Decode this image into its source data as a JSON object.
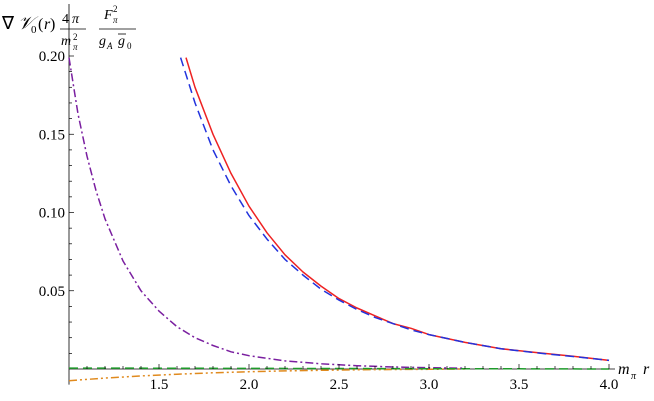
{
  "chart_data": {
    "type": "line",
    "title": "",
    "xlabel": "mπ r",
    "ylabel": "∇𝒱0(r) 4π/mπ² Fπ²/(gA g0)",
    "xlim": [
      1.0,
      4.0
    ],
    "ylim": [
      -0.01,
      0.2
    ],
    "grid": false,
    "legend": "none",
    "x_ticks": [
      "1.5",
      "2.0",
      "2.5",
      "3.0",
      "3.5",
      "4.0"
    ],
    "y_ticks": [
      "0.05",
      "0.10",
      "0.15",
      "0.20"
    ],
    "series": [
      {
        "style": "solid",
        "color": "#ee2222",
        "x": [
          1.65,
          1.7,
          1.8,
          1.9,
          2.0,
          2.1,
          2.2,
          2.3,
          2.4,
          2.5,
          2.6,
          2.7,
          2.8,
          2.9,
          3.0,
          3.2,
          3.4,
          3.6,
          3.8,
          4.0
        ],
        "y": [
          0.199,
          0.18,
          0.15,
          0.125,
          0.104,
          0.087,
          0.073,
          0.062,
          0.053,
          0.045,
          0.039,
          0.034,
          0.029,
          0.026,
          0.022,
          0.017,
          0.013,
          0.0105,
          0.0082,
          0.0055
        ]
      },
      {
        "style": "dashed",
        "color": "#2233dd",
        "x": [
          1.62,
          1.7,
          1.8,
          1.9,
          2.0,
          2.1,
          2.2,
          2.3,
          2.4,
          2.5,
          2.6,
          2.7,
          2.8,
          2.9,
          3.0,
          3.2,
          3.4,
          3.6,
          3.8,
          4.0
        ],
        "y": [
          0.199,
          0.17,
          0.14,
          0.117,
          0.098,
          0.083,
          0.07,
          0.06,
          0.051,
          0.044,
          0.038,
          0.033,
          0.029,
          0.025,
          0.022,
          0.017,
          0.013,
          0.0103,
          0.008,
          0.0055
        ]
      },
      {
        "style": "dashdot",
        "color": "#7a1fa0",
        "x": [
          1.0,
          1.05,
          1.1,
          1.15,
          1.2,
          1.3,
          1.4,
          1.5,
          1.6,
          1.7,
          1.8,
          1.9,
          2.0,
          2.2,
          2.4,
          2.6,
          2.8,
          3.0,
          3.2
        ],
        "y": [
          0.199,
          0.163,
          0.136,
          0.114,
          0.096,
          0.069,
          0.05,
          0.037,
          0.027,
          0.02,
          0.015,
          0.011,
          0.0085,
          0.0052,
          0.0033,
          0.0021,
          0.0013,
          0.0008,
          0.0005
        ]
      },
      {
        "style": "dashdotdot",
        "color": "#e08a1e",
        "x": [
          1.0,
          1.2,
          1.4,
          1.6,
          1.8,
          2.0,
          2.2,
          2.4,
          2.6,
          2.8,
          3.0,
          3.2
        ],
        "y": [
          -0.0075,
          -0.0058,
          -0.0044,
          -0.0033,
          -0.0024,
          -0.0017,
          -0.0012,
          -0.0008,
          -0.0005,
          -0.0003,
          -0.0002,
          0.0
        ]
      },
      {
        "style": "dashed",
        "color": "#1e9a2a",
        "x": [
          1.0,
          1.5,
          2.0,
          2.5,
          3.0,
          3.5,
          4.0
        ],
        "y": [
          0.0006,
          0.0005,
          0.0004,
          0.0003,
          0.0002,
          0.0001,
          0.0
        ]
      }
    ]
  }
}
